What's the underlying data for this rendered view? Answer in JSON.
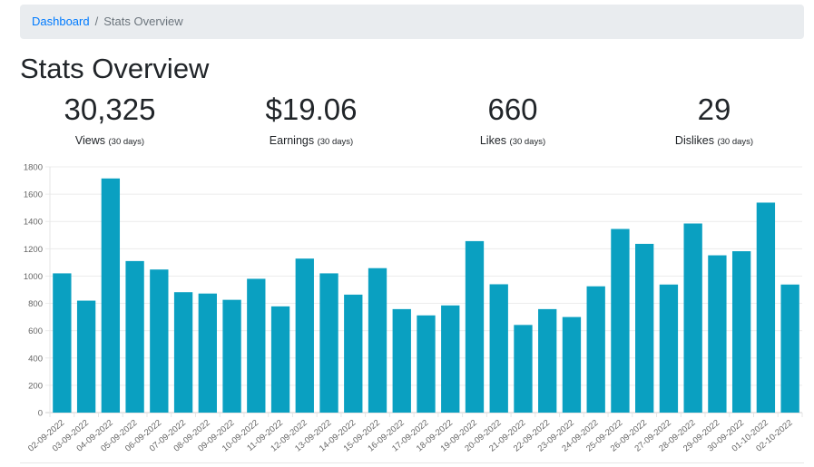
{
  "breadcrumb": {
    "link_label": "Dashboard",
    "separator": "/",
    "active_label": "Stats Overview"
  },
  "page_title": "Stats Overview",
  "stats": [
    {
      "value": "30,325",
      "label": "Views",
      "period": "(30 days)"
    },
    {
      "value": "$19.06",
      "label": "Earnings",
      "period": "(30 days)"
    },
    {
      "value": "660",
      "label": "Likes",
      "period": "(30 days)"
    },
    {
      "value": "29",
      "label": "Dislikes",
      "period": "(30 days)"
    }
  ],
  "chart_data": {
    "type": "bar",
    "title": "",
    "xlabel": "",
    "ylabel": "",
    "ylim": [
      0,
      1800
    ],
    "yticks": [
      0,
      200,
      400,
      600,
      800,
      1000,
      1200,
      1400,
      1600,
      1800
    ],
    "grid": true,
    "bar_color": "#0aa0c1",
    "categories": [
      "02-09-2022",
      "03-09-2022",
      "04-09-2022",
      "05-09-2022",
      "06-09-2022",
      "07-09-2022",
      "08-09-2022",
      "09-09-2022",
      "10-09-2022",
      "11-09-2022",
      "12-09-2022",
      "13-09-2022",
      "14-09-2022",
      "15-09-2022",
      "16-09-2022",
      "17-09-2022",
      "18-09-2022",
      "19-09-2022",
      "20-09-2022",
      "21-09-2022",
      "22-09-2022",
      "23-09-2022",
      "24-09-2022",
      "25-09-2022",
      "26-09-2022",
      "27-09-2022",
      "28-09-2022",
      "29-09-2022",
      "30-09-2022",
      "01-10-2022",
      "02-10-2022"
    ],
    "values": [
      1020,
      820,
      1715,
      1110,
      1048,
      882,
      872,
      826,
      980,
      778,
      1128,
      1020,
      864,
      1058,
      758,
      712,
      785,
      1256,
      940,
      642,
      758,
      700,
      925,
      1345,
      1236,
      938,
      1385,
      1152,
      1182,
      1538,
      938
    ]
  }
}
